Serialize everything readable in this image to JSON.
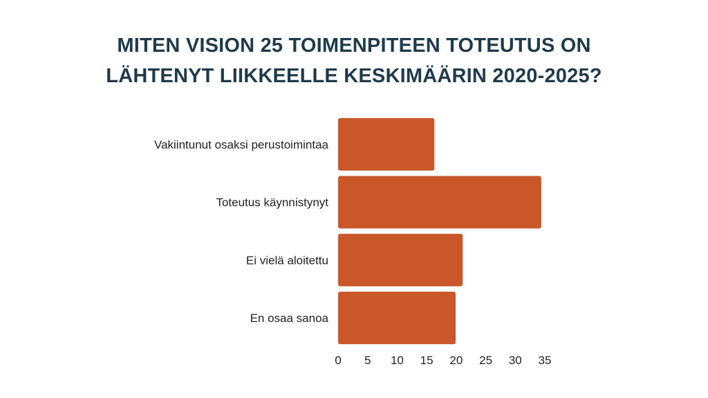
{
  "title_lines": [
    "MITEN VISION 25 TOIMENPITEEN TOTEUTUS ON",
    "LÄHTENYT LIIKKEELLE KESKIMÄÄRIN 2020-2025?"
  ],
  "chart_data": {
    "type": "bar",
    "orientation": "horizontal",
    "title": "MITEN VISION 25 TOIMENPITEEN TOTEUTUS ON LÄHTENYT LIIKKEELLE KESKIMÄÄRIN 2020-2025?",
    "categories": [
      "Vakiintunut osaksi perustoimintaa",
      "Toteutus käynnistynyt",
      "Ei vielä aloitettu",
      "En osaa sanoa"
    ],
    "values": [
      16.3,
      34.4,
      21.1,
      19.9
    ],
    "xlim": [
      0,
      35
    ],
    "xticks": [
      "0",
      "5",
      "10",
      "15",
      "20",
      "25",
      "30",
      "35"
    ],
    "xlabel": "",
    "ylabel": "",
    "grid": false,
    "legend": "none",
    "bar_color": "#c9572a"
  }
}
